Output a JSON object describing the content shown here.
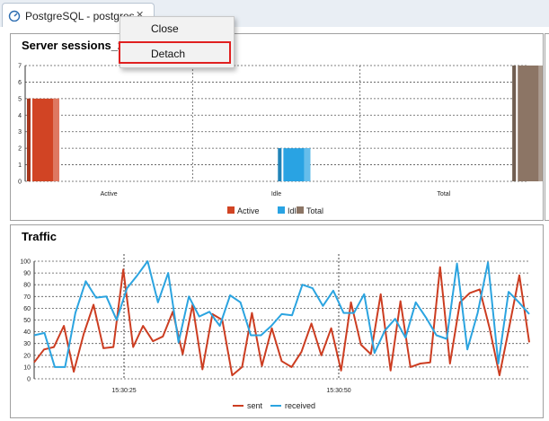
{
  "tab": {
    "title": "PostgreSQL - postgres",
    "close_icon": "close-icon",
    "icon": "elephant-dashboard-icon"
  },
  "context_menu": {
    "items": [
      "Close",
      "Detach"
    ],
    "highlighted": "Detach"
  },
  "panels": [
    {
      "title": "Server sessions_2",
      "chart_data": {
        "type": "bar",
        "title": "Server sessions_2",
        "categories": [
          "Active",
          "Idle",
          "Total"
        ],
        "series": [
          {
            "name": "Active",
            "color": "#d14424",
            "values": [
              5,
              0,
              0
            ]
          },
          {
            "name": "Idle",
            "color": "#29a3e3",
            "values": [
              0,
              2,
              0
            ]
          },
          {
            "name": "Total",
            "color": "#8c7565",
            "values": [
              0,
              0,
              7
            ]
          }
        ],
        "y_ticks": [
          "0",
          "1",
          "2",
          "3",
          "4",
          "5",
          "6",
          "7"
        ],
        "ylim": [
          0,
          7
        ],
        "grid": true,
        "legend": "bottom"
      }
    },
    {
      "title": "Traffic",
      "chart_data": {
        "type": "line",
        "title": "Traffic",
        "x_tick_labels": [
          "15:30:25",
          "15:30:50"
        ],
        "y_ticks": [
          "0",
          "10",
          "20",
          "30",
          "40",
          "50",
          "60",
          "70",
          "80",
          "90",
          "100"
        ],
        "ylim": [
          0,
          100
        ],
        "grid": true,
        "legend": "bottom",
        "series": [
          {
            "name": "sent",
            "color": "#cc3d21",
            "values": [
              14,
              25,
              27,
              45,
              6,
              38,
              63,
              26,
              27,
              93,
              27,
              45,
              32,
              36,
              57,
              21,
              63,
              8,
              55,
              50,
              3,
              10,
              56,
              11,
              43,
              15,
              10,
              23,
              47,
              20,
              43,
              7,
              65,
              29,
              21,
              72,
              7,
              66,
              10,
              13,
              14,
              95,
              13,
              65,
              73,
              76,
              43,
              3,
              45,
              88,
              31
            ]
          },
          {
            "name": "received",
            "color": "#2ba4e0",
            "values": [
              37,
              39,
              10,
              10,
              56,
              83,
              69,
              70,
              50,
              77,
              88,
              100,
              65,
              90,
              31,
              70,
              53,
              57,
              45,
              71,
              65,
              37,
              37,
              45,
              55,
              54,
              80,
              77,
              62,
              75,
              56,
              56,
              72,
              22,
              41,
              51,
              35,
              65,
              52,
              37,
              34,
              98,
              25,
              56,
              99,
              13,
              74,
              65,
              55
            ]
          }
        ]
      }
    }
  ]
}
